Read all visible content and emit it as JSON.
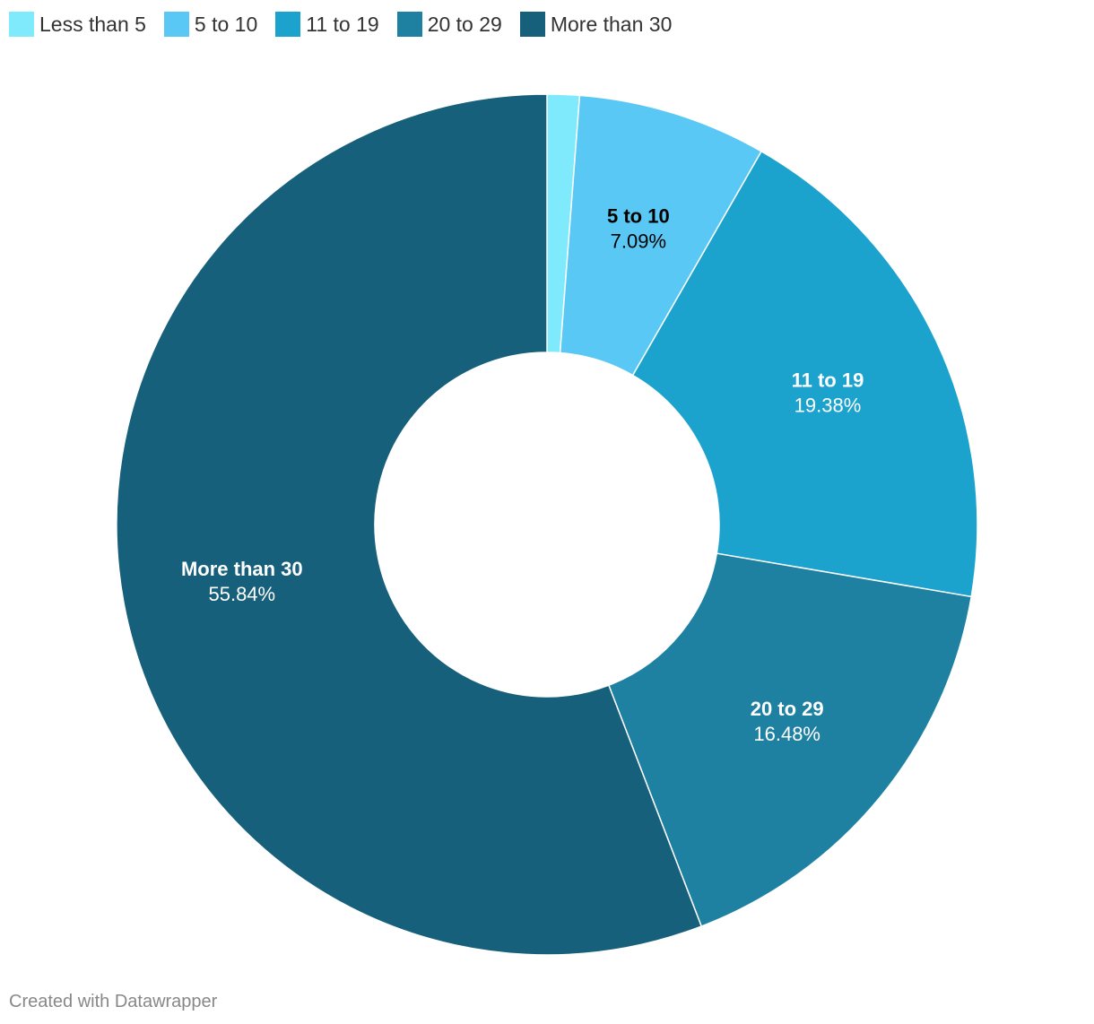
{
  "chart_data": {
    "type": "pie",
    "variant": "donut",
    "categories": [
      "Less than 5",
      "5 to 10",
      "11 to 19",
      "20 to 29",
      "More than 30"
    ],
    "values": [
      1.21,
      7.09,
      19.38,
      16.48,
      55.84
    ],
    "labels": [
      "",
      "7.09%",
      "19.38%",
      "16.48%",
      "55.84%"
    ],
    "colors": [
      "#7EEAFC",
      "#59C8F5",
      "#1BA3CE",
      "#1E81A2",
      "#17607B"
    ],
    "label_colors": [
      "#000000",
      "#000000",
      "#ffffff",
      "#ffffff",
      "#ffffff"
    ],
    "legend_position": "top-left"
  },
  "footer": {
    "credit": "Created with Datawrapper"
  }
}
